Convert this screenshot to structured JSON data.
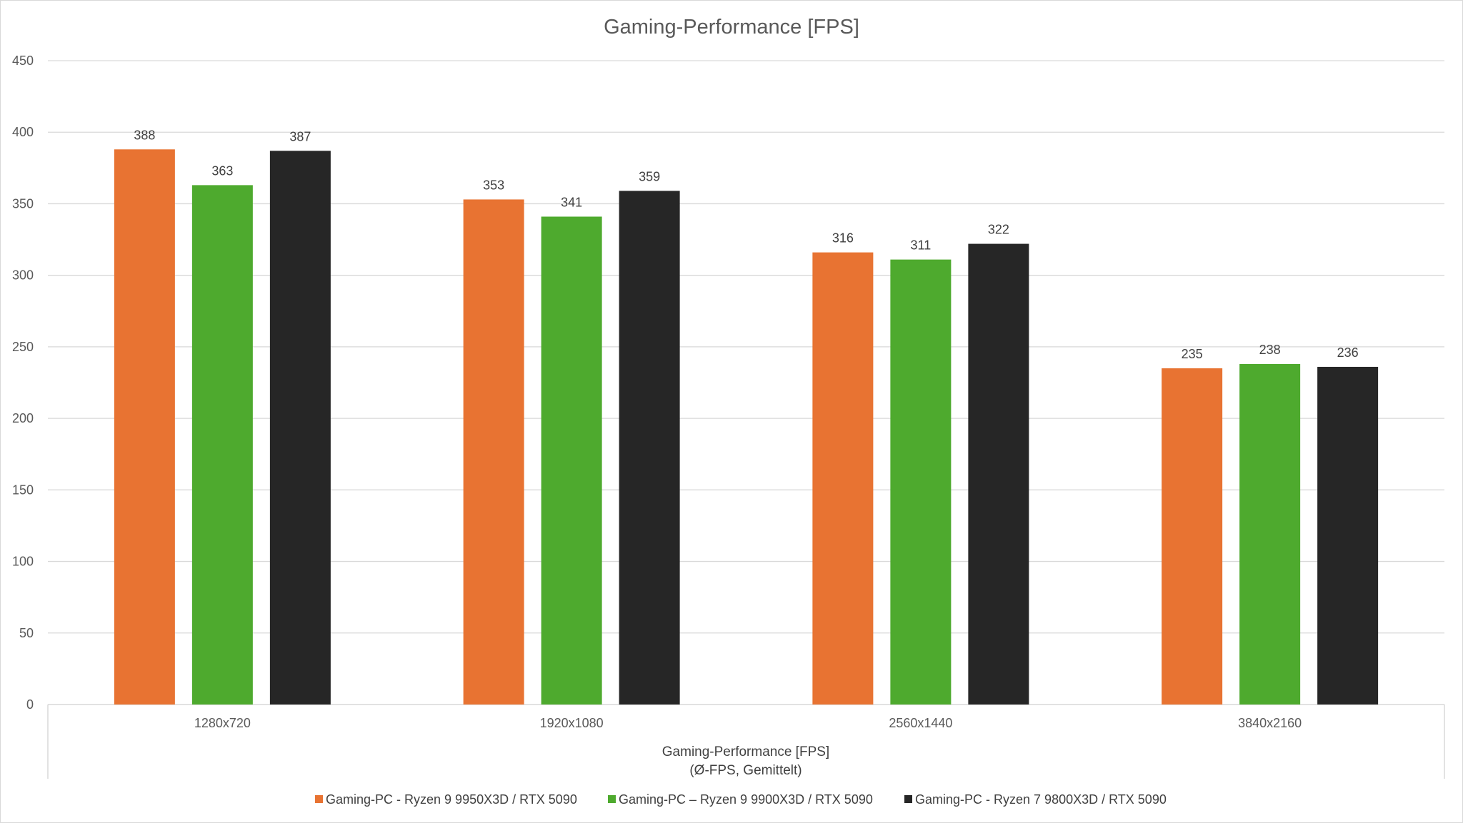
{
  "chart_data": {
    "type": "bar",
    "title": "Gaming-Performance [FPS]",
    "categories": [
      "1280x720",
      "1920x1080",
      "2560x1440",
      "3840x2160"
    ],
    "series": [
      {
        "name": "Gaming-PC - Ryzen 9 9950X3D / RTX 5090",
        "color": "#e87332",
        "values": [
          388,
          353,
          316,
          235
        ]
      },
      {
        "name": "Gaming-PC – Ryzen 9 9900X3D / RTX 5090",
        "color": "#4eaa2e",
        "values": [
          363,
          341,
          311,
          238
        ]
      },
      {
        "name": "Gaming-PC - Ryzen 7 9800X3D / RTX 5090",
        "color": "#262626",
        "values": [
          387,
          359,
          322,
          236
        ]
      }
    ],
    "ylim": [
      0,
      450
    ],
    "yticks": [
      "0",
      "50",
      "100",
      "150",
      "200",
      "250",
      "300",
      "350",
      "400",
      "450"
    ],
    "xlabel_lines": [
      "Gaming-Performance  [FPS]",
      "(Ø-FPS, Gemittelt)"
    ],
    "ylabel": "",
    "grid": true,
    "data_labels": true,
    "legend_position": "bottom"
  }
}
